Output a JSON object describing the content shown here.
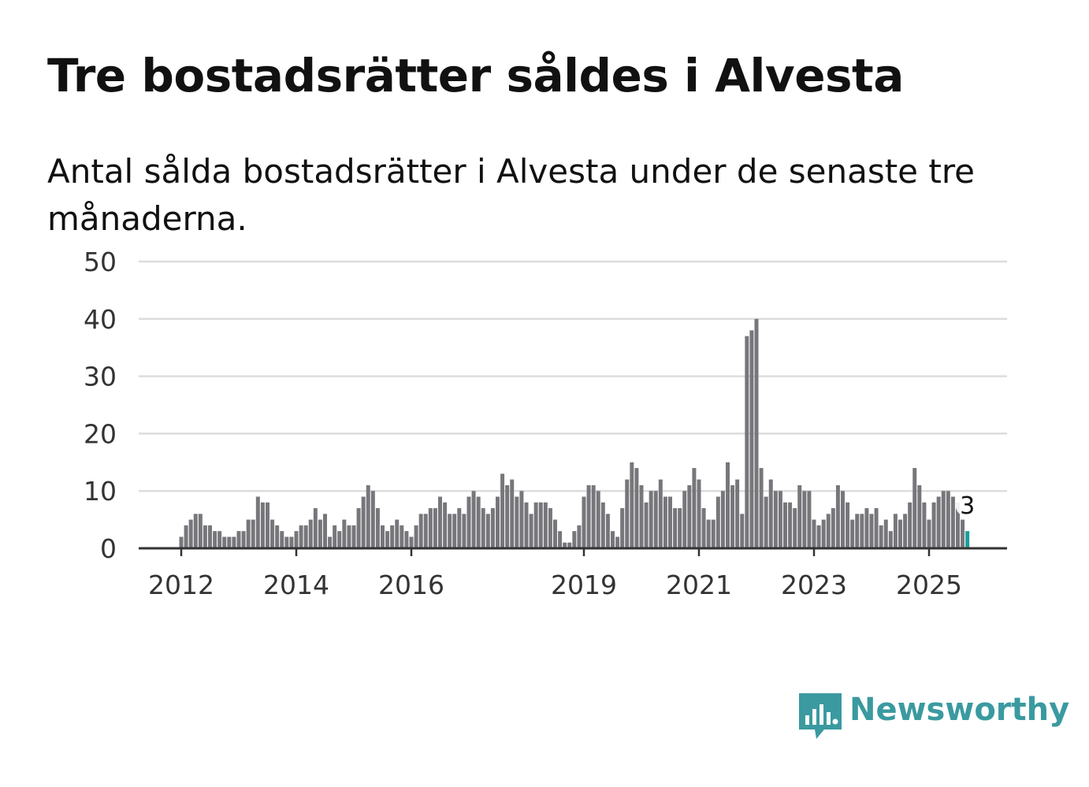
{
  "title": "Tre bostadsrätter såldes i Alvesta",
  "subtitle": "Antal sålda bostadsrätter i Alvesta under de senaste tre månaderna.",
  "brand": {
    "name": "Newsworthy",
    "color": "#3a9aa0",
    "icon": "bar-chart-speech-bubble-icon"
  },
  "colors": {
    "bar": "#77767b",
    "highlight": "#199e9a",
    "grid": "#dddddd",
    "axis": "#333333"
  },
  "chart_data": {
    "type": "bar",
    "title": "Tre bostadsrätter såldes i Alvesta",
    "xlabel": "",
    "ylabel": "",
    "ylim": [
      0,
      50
    ],
    "yticks": [
      0,
      10,
      20,
      30,
      40,
      50
    ],
    "xticks": [
      {
        "label": "2012",
        "index": 0
      },
      {
        "label": "2014",
        "index": 24
      },
      {
        "label": "2016",
        "index": 48
      },
      {
        "label": "2019",
        "index": 84
      },
      {
        "label": "2021",
        "index": 108
      },
      {
        "label": "2023",
        "index": 132
      },
      {
        "label": "2025",
        "index": 156
      }
    ],
    "start": "2012-01",
    "grid": true,
    "values": [
      2,
      4,
      5,
      6,
      6,
      4,
      4,
      3,
      3,
      2,
      2,
      2,
      3,
      3,
      5,
      5,
      9,
      8,
      8,
      5,
      4,
      3,
      2,
      2,
      3,
      4,
      4,
      5,
      7,
      5,
      6,
      2,
      4,
      3,
      5,
      4,
      4,
      7,
      9,
      11,
      10,
      7,
      4,
      3,
      4,
      5,
      4,
      3,
      2,
      4,
      6,
      6,
      7,
      7,
      9,
      8,
      6,
      6,
      7,
      6,
      9,
      10,
      9,
      7,
      6,
      7,
      9,
      13,
      11,
      12,
      9,
      10,
      8,
      6,
      8,
      8,
      8,
      7,
      5,
      3,
      1,
      1,
      3,
      4,
      9,
      11,
      11,
      10,
      8,
      6,
      3,
      2,
      7,
      12,
      15,
      14,
      11,
      8,
      10,
      10,
      12,
      9,
      9,
      7,
      7,
      10,
      11,
      14,
      12,
      7,
      5,
      5,
      9,
      10,
      15,
      11,
      12,
      6,
      37,
      38,
      40,
      14,
      9,
      12,
      10,
      10,
      8,
      8,
      7,
      11,
      10,
      10,
      5,
      4,
      5,
      6,
      7,
      11,
      10,
      8,
      5,
      6,
      6,
      7,
      6,
      7,
      4,
      5,
      3,
      6,
      5,
      6,
      8,
      14,
      11,
      8,
      5,
      8,
      9,
      10,
      10,
      9,
      8,
      5,
      3
    ],
    "highlight_last": 1,
    "last_value_label": "3"
  }
}
